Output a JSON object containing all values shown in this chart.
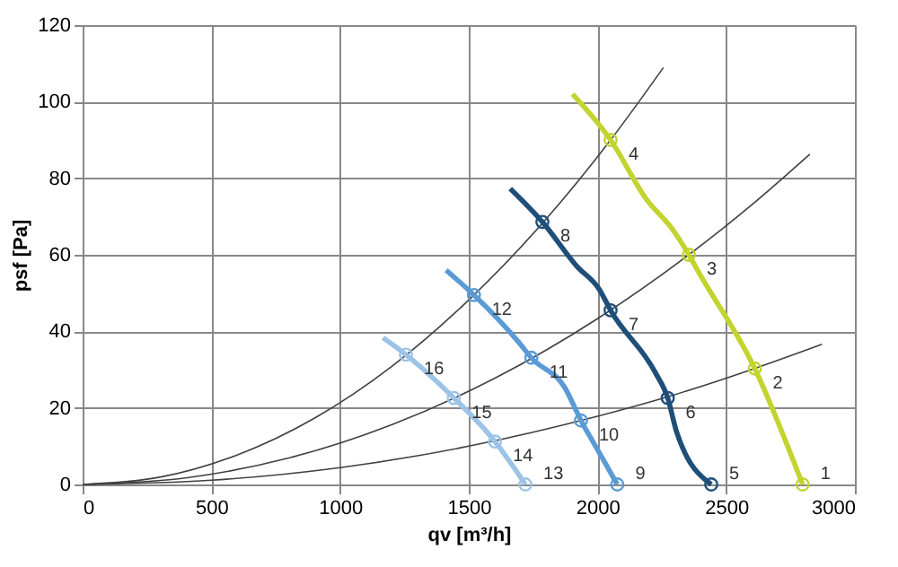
{
  "chart_data": {
    "type": "line",
    "xlabel": "qv [m³/h]",
    "ylabel": "psf [Pa]",
    "xlim": [
      0,
      3000
    ],
    "ylim": [
      0,
      120
    ],
    "xticks": [
      0,
      500,
      1000,
      1500,
      2000,
      2500,
      3000
    ],
    "yticks": [
      0,
      20,
      40,
      60,
      80,
      100,
      120
    ],
    "grid": true,
    "line_style": "solid",
    "marker": "none",
    "series": [
      {
        "color": "#404040",
        "x": [
          0,
          300,
          600,
          900,
          1200,
          1500,
          1800,
          2051,
          2256
        ],
        "values": [
          0,
          1.9,
          7.7,
          17.3,
          30.8,
          48.2,
          69.3,
          90,
          108.9
        ]
      },
      {
        "color": "#404040",
        "x": [
          0,
          400,
          800,
          1200,
          1600,
          2000,
          2355,
          2600,
          2825
        ],
        "values": [
          0,
          1.7,
          6.9,
          15.6,
          27.7,
          43.3,
          60,
          73.1,
          86.3
        ]
      },
      {
        "color": "#404040",
        "x": [
          0,
          500,
          1000,
          1500,
          2000,
          2273,
          2611,
          2872
        ],
        "values": [
          0,
          1.1,
          4.4,
          10,
          17.8,
          22.9,
          30.3,
          36.6
        ]
      },
      {
        "color": "#c3d32f",
        "x": [
          1903,
          2051,
          2190,
          2291,
          2355,
          2390,
          2611,
          2797
        ],
        "values": [
          102,
          90,
          74.5,
          66.7,
          60,
          55.8,
          30.3,
          0
        ]
      },
      {
        "color": "#1f4e79",
        "x": [
          1661,
          1786,
          1920,
          2007,
          2051,
          2225,
          2273,
          2308,
          2442
        ],
        "values": [
          77.3,
          68.6,
          57,
          51,
          45.5,
          29.2,
          22.6,
          13.6,
          0
        ]
      },
      {
        "color": "#5b9bd5",
        "x": [
          1412,
          1520,
          1696,
          1743,
          1873,
          1936,
          2002,
          2077
        ],
        "values": [
          56,
          49.5,
          37,
          33.1,
          25.3,
          16.7,
          8.9,
          0
        ]
      },
      {
        "color": "#9dc3e6",
        "x": [
          1167,
          1256,
          1442,
          1602,
          1661,
          1720
        ],
        "values": [
          38.3,
          33.9,
          22.6,
          11.2,
          5.8,
          0
        ]
      },
      {
        "type": "scatter",
        "marker": "circle",
        "x": [
          2797,
          2611,
          2355,
          2051,
          2442,
          2273,
          2051,
          1786,
          2077,
          1936,
          1743,
          1520,
          1720,
          1602,
          1442,
          1256
        ],
        "values": [
          0,
          30.3,
          60,
          90,
          0,
          22.6,
          45.5,
          68.6,
          0,
          16.7,
          33.1,
          49.5,
          0,
          11.2,
          22.6,
          33.9
        ],
        "colors": [
          "#c3d32f",
          "#c3d32f",
          "#c3d32f",
          "#c3d32f",
          "#1f4e79",
          "#1f4e79",
          "#1f4e79",
          "#1f4e79",
          "#5b9bd5",
          "#5b9bd5",
          "#5b9bd5",
          "#5b9bd5",
          "#9dc3e6",
          "#9dc3e6",
          "#9dc3e6",
          "#9dc3e6"
        ]
      }
    ],
    "annotations": [
      {
        "text": "1",
        "x": 2797,
        "y": 0
      },
      {
        "text": "2",
        "x": 2611,
        "y": 30.3
      },
      {
        "text": "3",
        "x": 2355,
        "y": 60
      },
      {
        "text": "4",
        "x": 2051,
        "y": 90
      },
      {
        "text": "5",
        "x": 2442,
        "y": 0
      },
      {
        "text": "6",
        "x": 2273,
        "y": 22.6
      },
      {
        "text": "7",
        "x": 2051,
        "y": 45.5
      },
      {
        "text": "8",
        "x": 1786,
        "y": 68.6
      },
      {
        "text": "9",
        "x": 2077,
        "y": 0
      },
      {
        "text": "10",
        "x": 1936,
        "y": 16.7
      },
      {
        "text": "11",
        "x": 1743,
        "y": 33.1
      },
      {
        "text": "12",
        "x": 1520,
        "y": 49.5
      },
      {
        "text": "13",
        "x": 1720,
        "y": 0
      },
      {
        "text": "14",
        "x": 1602,
        "y": 11.2
      },
      {
        "text": "15",
        "x": 1442,
        "y": 22.6
      },
      {
        "text": "16",
        "x": 1256,
        "y": 33.9
      }
    ]
  }
}
